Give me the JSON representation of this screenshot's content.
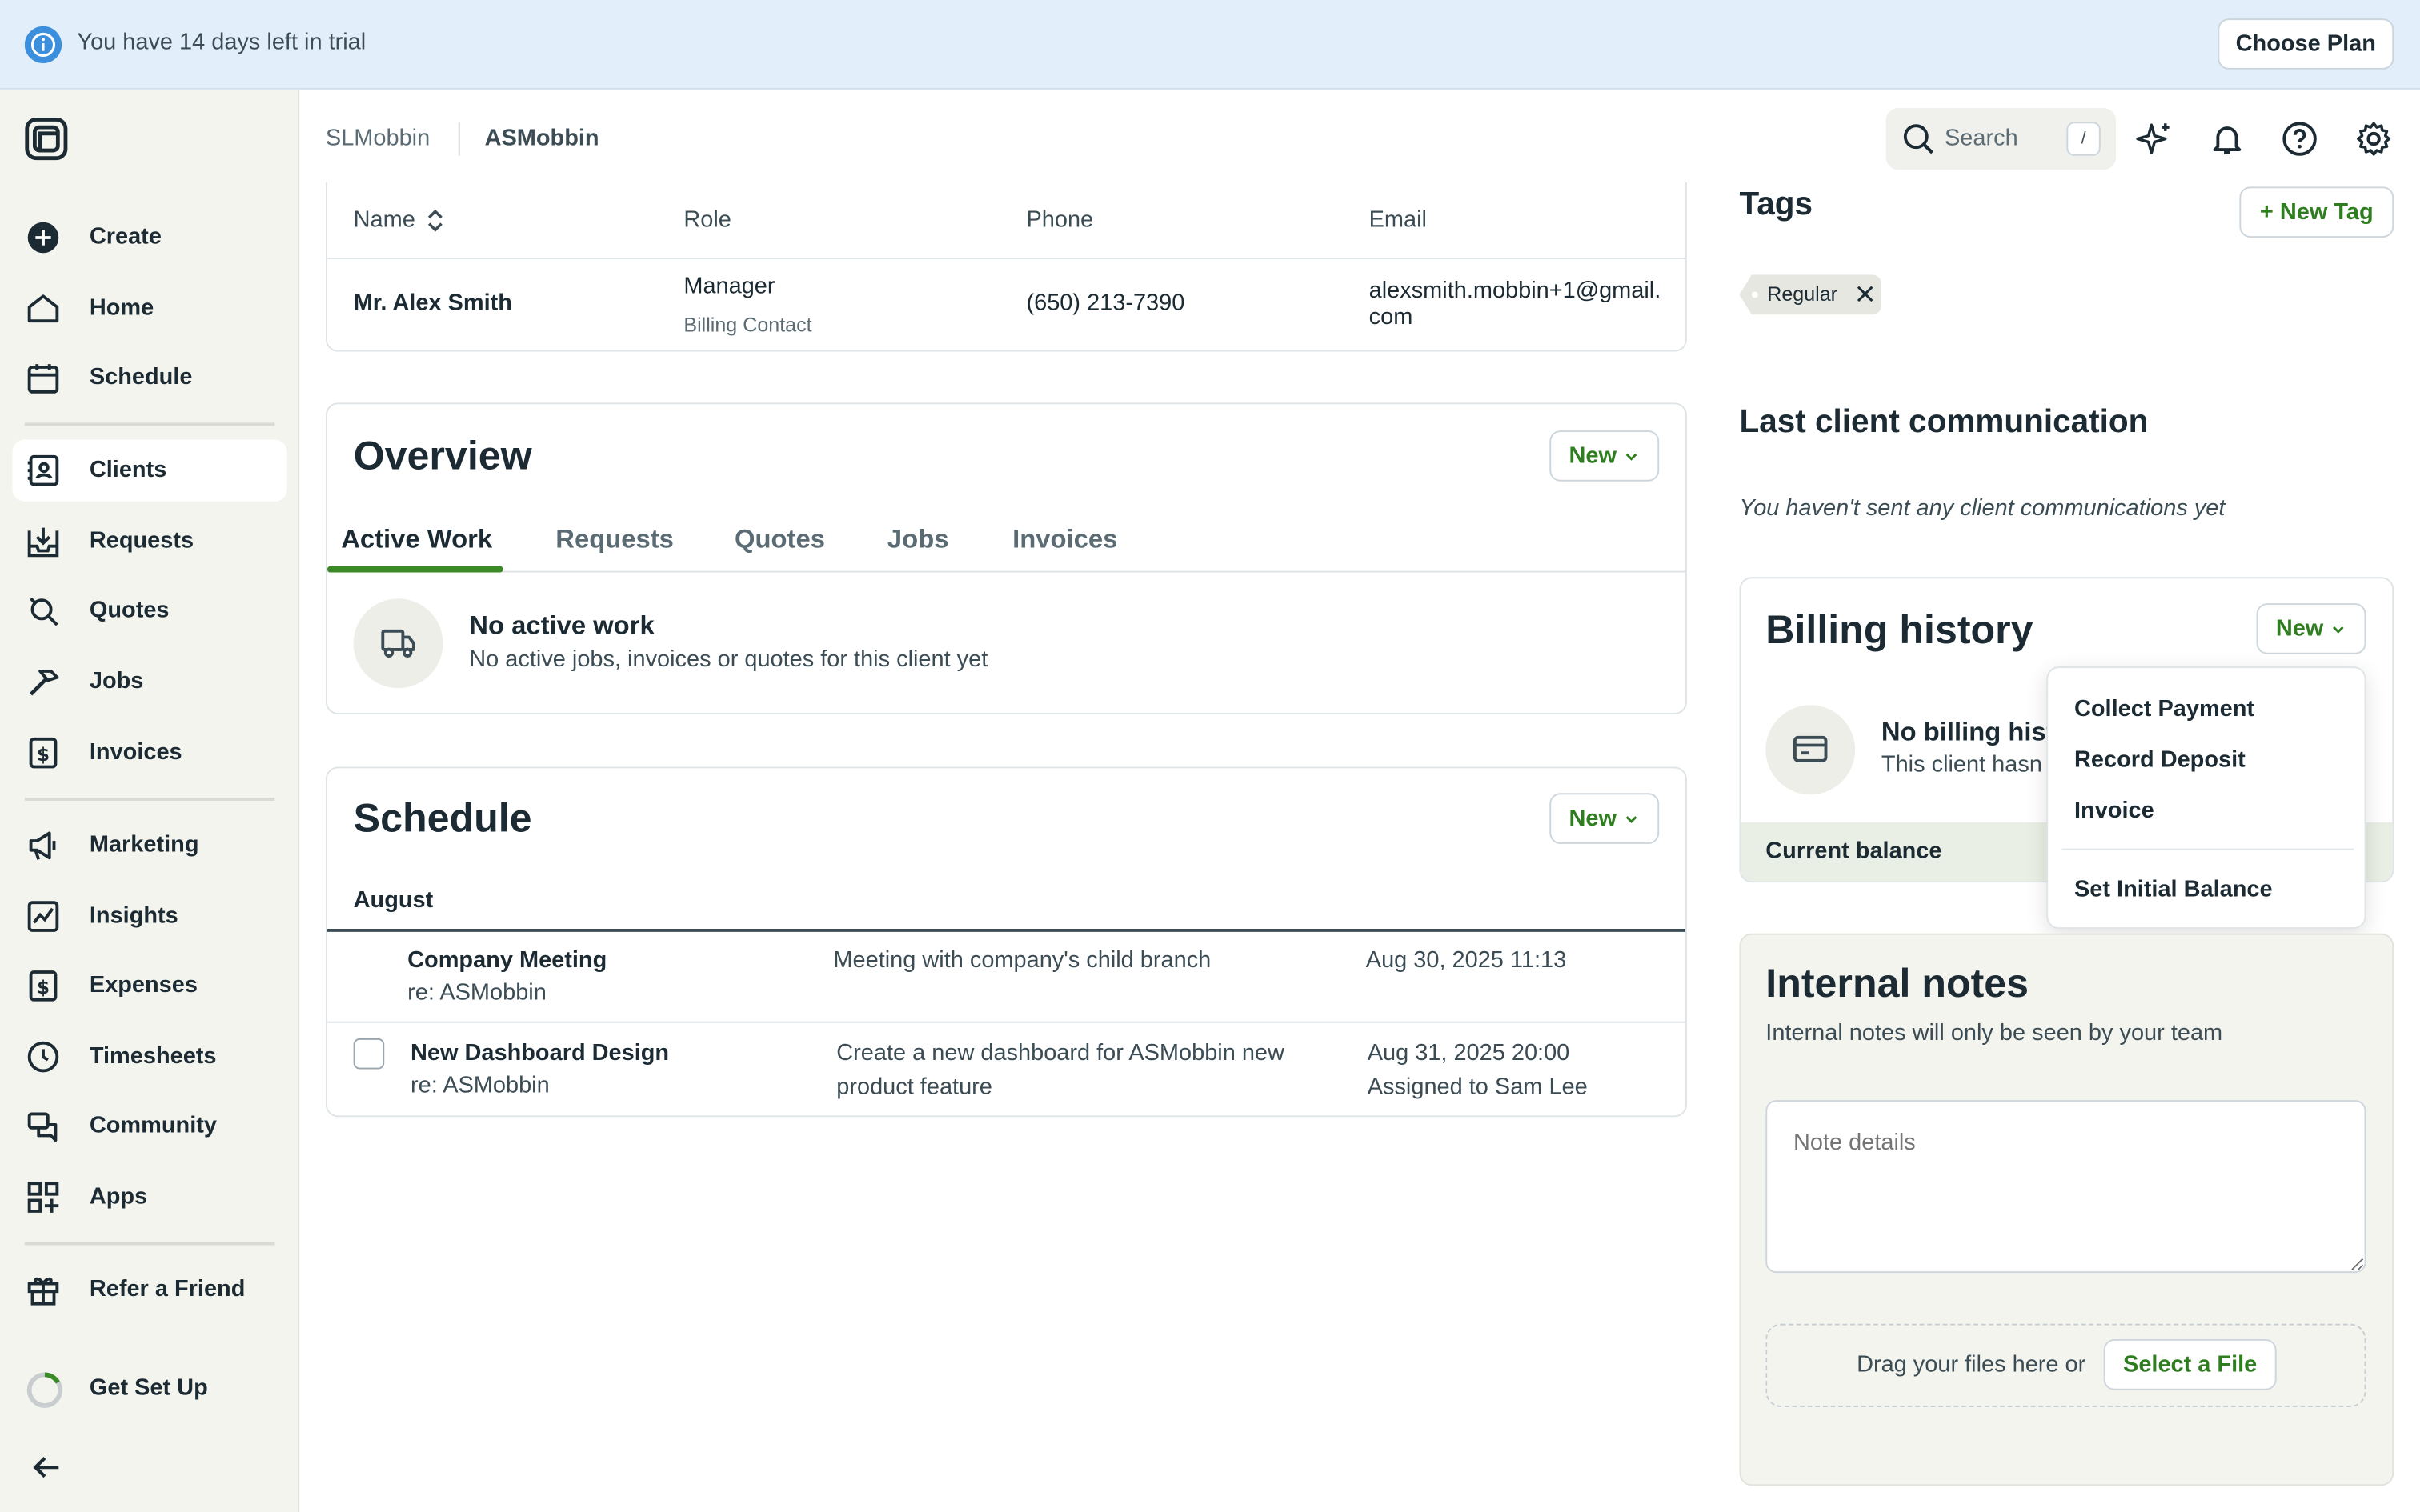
{
  "banner": {
    "text": "You have 14 days left in trial",
    "cta": "Choose Plan"
  },
  "sidebar": {
    "items": [
      {
        "label": "Create",
        "icon": "plus-circle-icon"
      },
      {
        "label": "Home",
        "icon": "home-icon"
      },
      {
        "label": "Schedule",
        "icon": "calendar-icon"
      },
      {
        "label": "Clients",
        "icon": "clients-icon",
        "active": true
      },
      {
        "label": "Requests",
        "icon": "inbox-icon"
      },
      {
        "label": "Quotes",
        "icon": "quote-icon"
      },
      {
        "label": "Jobs",
        "icon": "hammer-icon"
      },
      {
        "label": "Invoices",
        "icon": "invoice-icon"
      },
      {
        "label": "Marketing",
        "icon": "megaphone-icon"
      },
      {
        "label": "Insights",
        "icon": "chart-icon"
      },
      {
        "label": "Expenses",
        "icon": "expense-icon"
      },
      {
        "label": "Timesheets",
        "icon": "clock-icon"
      },
      {
        "label": "Community",
        "icon": "chat-icon"
      },
      {
        "label": "Apps",
        "icon": "apps-icon"
      },
      {
        "label": "Refer a Friend",
        "icon": "gift-icon"
      },
      {
        "label": "Get Set Up",
        "icon": "progress-ring-icon"
      }
    ]
  },
  "header": {
    "breadcrumb": [
      "SLMobbin",
      "ASMobbin"
    ],
    "search_placeholder": "Search",
    "search_shortcut": "/"
  },
  "contacts": {
    "columns": [
      "Name",
      "Role",
      "Phone",
      "Email"
    ],
    "rows": [
      {
        "name": "Mr. Alex Smith",
        "role": "Manager",
        "role_sub": "Billing Contact",
        "phone": "(650) 213-7390",
        "email_line1": "alexsmith.mobbin+1@gmail.",
        "email_line2": "com"
      }
    ]
  },
  "overview": {
    "title": "Overview",
    "new_label": "New",
    "tabs": [
      "Active Work",
      "Requests",
      "Quotes",
      "Jobs",
      "Invoices"
    ],
    "empty_title": "No active work",
    "empty_text": "No active jobs, invoices or quotes for this client yet"
  },
  "schedule": {
    "title": "Schedule",
    "new_label": "New",
    "month": "August",
    "items": [
      {
        "title": "Company Meeting",
        "sub": "re: ASMobbin",
        "desc": "Meeting with company's child branch",
        "desc2": "",
        "date": "Aug 30, 2025 11:13",
        "date2": ""
      },
      {
        "title": "New Dashboard Design",
        "sub": "re: ASMobbin",
        "desc": "Create a new dashboard for ASMobbin new",
        "desc2": "product feature",
        "date": "Aug 31, 2025 20:00",
        "date2": "Assigned to Sam Lee"
      }
    ]
  },
  "tags": {
    "title": "Tags",
    "new_label": "+ New Tag",
    "items": [
      "Regular"
    ]
  },
  "communication": {
    "title": "Last client communication",
    "empty": "You haven't sent any client communications yet"
  },
  "billing": {
    "title": "Billing history",
    "new_label": "New",
    "empty_title": "No billing hist",
    "empty_text": "This client hasn",
    "balance_label": "Current balance",
    "menu": [
      "Collect Payment",
      "Record Deposit",
      "Invoice",
      "Set Initial Balance"
    ]
  },
  "notes": {
    "title": "Internal notes",
    "subtitle": "Internal notes will only be seen by your team",
    "placeholder": "Note details",
    "drop_text": "Drag your files here or",
    "select_label": "Select a File"
  },
  "colors": {
    "accent": "#2e7d1e",
    "banner": "#e2eefa",
    "sidebar": "#f4f4ef"
  }
}
